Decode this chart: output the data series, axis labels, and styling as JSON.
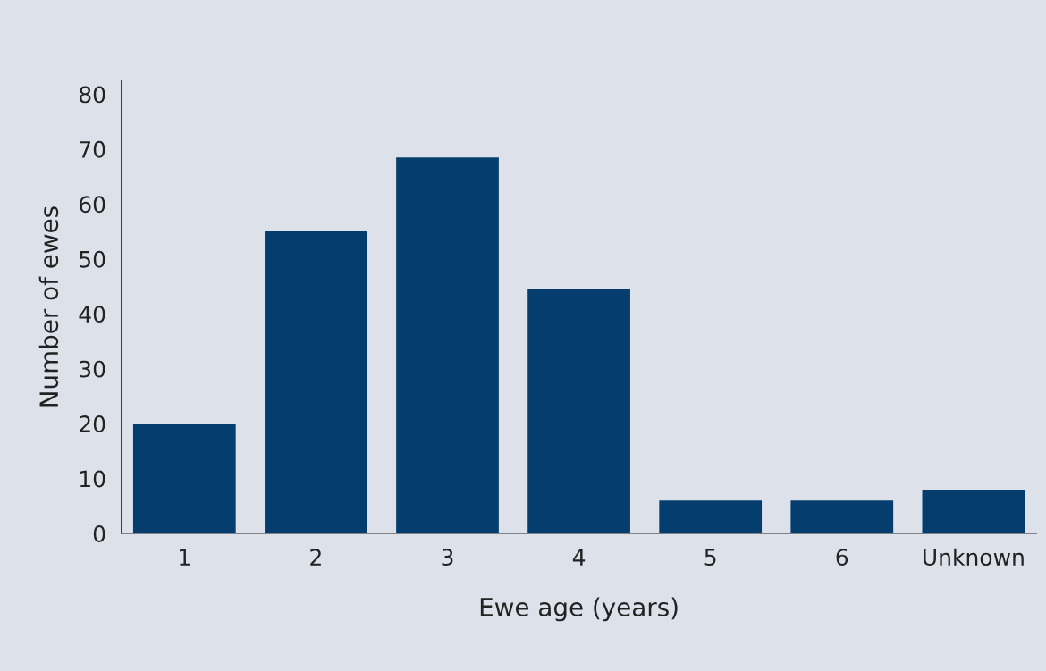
{
  "chart_data": {
    "type": "bar",
    "xlabel": "Ewe age (years)",
    "ylabel": "Number of ewes",
    "categories": [
      "1",
      "2",
      "3",
      "4",
      "5",
      "6",
      "Unknown"
    ],
    "values": [
      20,
      55,
      68.5,
      44.5,
      6,
      6,
      8
    ],
    "color": "#053e6e",
    "ylim": [
      0,
      82.5
    ],
    "yticks": [
      0,
      10,
      20,
      30,
      40,
      50,
      60,
      70,
      80
    ],
    "grid": false,
    "legend": false
  }
}
